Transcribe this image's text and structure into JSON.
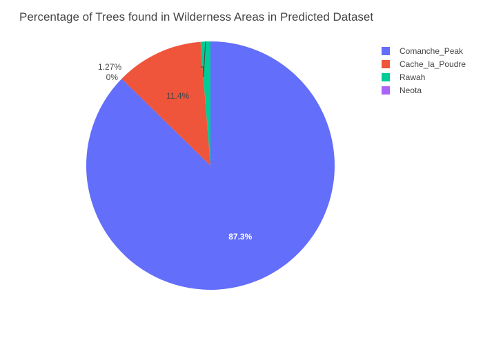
{
  "chart_data": {
    "type": "pie",
    "title": "Percentage of Trees found in Wilderness Areas in Predicted Dataset",
    "labels": [
      "Comanche_Peak",
      "Cache_la_Poudre",
      "Rawah",
      "Neota"
    ],
    "values": [
      87.3,
      11.4,
      1.27,
      0
    ],
    "display_labels": [
      "87.3%",
      "11.4%",
      "1.27%",
      "0%"
    ],
    "colors": [
      "#636efa",
      "#ef553b",
      "#00cc96",
      "#ab63fa"
    ],
    "legend_position": "top-right",
    "direction": "clockwise",
    "start": "top"
  }
}
